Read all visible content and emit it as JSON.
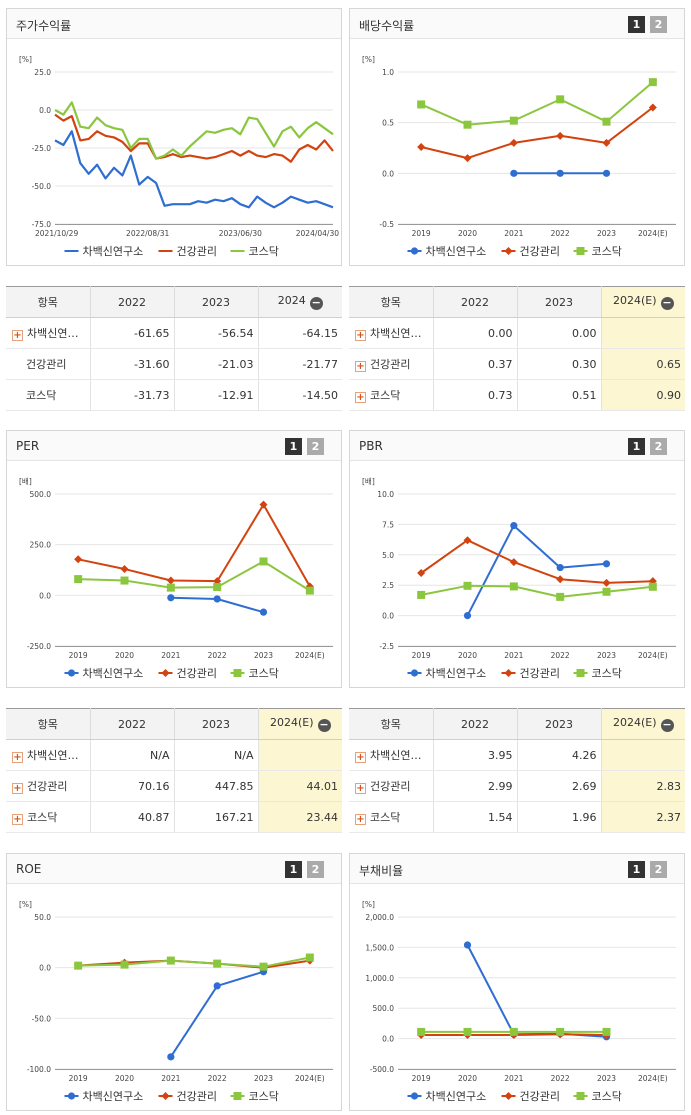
{
  "colors": {
    "blue": "#2f6ed1",
    "red": "#d2430f",
    "green": "#8bc63f"
  },
  "panels": [
    {
      "id": "stock-return",
      "title": "주가수익률",
      "unit": "[%]",
      "buttons": false,
      "chart_data": {
        "type": "line",
        "title": "주가수익률",
        "ylabel": "[%]",
        "ylim": [
          -75,
          25
        ],
        "yticks": [
          "25.0",
          "0.0",
          "-25.0",
          "-50.0",
          "-75.0"
        ],
        "x_labels": [
          "2021/10/29",
          "2022/08/31",
          "2023/06/30",
          "2024/04/30"
        ],
        "grid": true,
        "legend": "bottom",
        "series": [
          {
            "name": "차백신연구소",
            "values": [
              -20,
              -23,
              -14,
              -35,
              -42,
              -36,
              -45,
              -38,
              -43,
              -30,
              -49,
              -44,
              -48,
              -63,
              -62,
              -62,
              -62,
              -60,
              -61,
              -59,
              -60,
              -58,
              -62,
              -64,
              -57,
              -61,
              -64,
              -61,
              -57,
              -59,
              -61,
              -60,
              -62,
              -64
            ]
          },
          {
            "name": "건강관리",
            "values": [
              -3,
              -7,
              -4,
              -20,
              -19,
              -14,
              -17,
              -18,
              -21,
              -27,
              -22,
              -22,
              -32,
              -31,
              -29,
              -31,
              -30,
              -31,
              -32,
              -31,
              -29,
              -27,
              -30,
              -27,
              -30,
              -31,
              -29,
              -30,
              -34,
              -26,
              -23,
              -26,
              -20,
              -27
            ]
          },
          {
            "name": "코스닥",
            "values": [
              0,
              -3,
              5,
              -11,
              -12,
              -5,
              -10,
              -12,
              -13,
              -25,
              -19,
              -19,
              -32,
              -30,
              -26,
              -30,
              -24,
              -19,
              -14,
              -15,
              -13,
              -12,
              -16,
              -5,
              -6,
              -15,
              -24,
              -14,
              -11,
              -18,
              -12,
              -8,
              -12,
              -16
            ]
          }
        ]
      },
      "table": {
        "headers": [
          "항목",
          "2022",
          "2023",
          "2024"
        ],
        "minus_on_last": true,
        "yellow_last": false,
        "rows": [
          {
            "name": "차백신연…",
            "plus": true,
            "cells": [
              "-61.65",
              "-56.54",
              "-64.15"
            ]
          },
          {
            "name": "건강관리",
            "plus": false,
            "cells": [
              "-31.60",
              "-21.03",
              "-21.77"
            ]
          },
          {
            "name": "코스닥",
            "plus": false,
            "cells": [
              "-31.73",
              "-12.91",
              "-14.50"
            ]
          }
        ]
      }
    },
    {
      "id": "dividend-yield",
      "title": "배당수익률",
      "unit": "[%]",
      "buttons": true,
      "chart_data": {
        "type": "line",
        "title": "배당수익률",
        "ylabel": "[%]",
        "ylim": [
          -0.5,
          1.0
        ],
        "yticks": [
          "1.0",
          "0.5",
          "0.0",
          "-0.5"
        ],
        "categories": [
          "2019",
          "2020",
          "2021",
          "2022",
          "2023",
          "2024(E)"
        ],
        "grid": true,
        "legend": "bottom",
        "series": [
          {
            "name": "차백신연구소",
            "values": [
              null,
              null,
              0.0,
              0.0,
              0.0,
              null
            ]
          },
          {
            "name": "건강관리",
            "values": [
              0.26,
              0.15,
              0.3,
              0.37,
              0.3,
              0.65
            ]
          },
          {
            "name": "코스닥",
            "values": [
              0.68,
              0.48,
              0.52,
              0.73,
              0.51,
              0.9
            ]
          }
        ]
      },
      "table": {
        "headers": [
          "항목",
          "2022",
          "2023",
          "2024(E)"
        ],
        "minus_on_last": true,
        "yellow_last": true,
        "rows": [
          {
            "name": "차백신연…",
            "plus": true,
            "cells": [
              "0.00",
              "0.00",
              ""
            ]
          },
          {
            "name": "건강관리",
            "plus": true,
            "cells": [
              "0.37",
              "0.30",
              "0.65"
            ]
          },
          {
            "name": "코스닥",
            "plus": true,
            "cells": [
              "0.73",
              "0.51",
              "0.90"
            ]
          }
        ]
      }
    },
    {
      "id": "per",
      "title": "PER",
      "unit": "[배]",
      "buttons": true,
      "chart_data": {
        "type": "line",
        "title": "PER",
        "ylabel": "[배]",
        "ylim": [
          -250,
          500
        ],
        "yticks": [
          "500.0",
          "250.0",
          "0.0",
          "-250.0"
        ],
        "categories": [
          "2019",
          "2020",
          "2021",
          "2022",
          "2023",
          "2024(E)"
        ],
        "grid": true,
        "legend": "bottom",
        "series": [
          {
            "name": "차백신연구소",
            "values": [
              null,
              null,
              -12,
              -18,
              -83,
              null
            ]
          },
          {
            "name": "건강관리",
            "values": [
              178,
              130,
              73,
              70.16,
              447.85,
              44.01
            ]
          },
          {
            "name": "코스닥",
            "values": [
              80,
              73,
              38,
              40.87,
              167.21,
              23.44
            ]
          }
        ]
      },
      "table": {
        "headers": [
          "항목",
          "2022",
          "2023",
          "2024(E)"
        ],
        "minus_on_last": true,
        "yellow_last": true,
        "rows": [
          {
            "name": "차백신연…",
            "plus": true,
            "cells": [
              "N/A",
              "N/A",
              ""
            ]
          },
          {
            "name": "건강관리",
            "plus": true,
            "cells": [
              "70.16",
              "447.85",
              "44.01"
            ]
          },
          {
            "name": "코스닥",
            "plus": true,
            "cells": [
              "40.87",
              "167.21",
              "23.44"
            ]
          }
        ]
      }
    },
    {
      "id": "pbr",
      "title": "PBR",
      "unit": "[배]",
      "buttons": true,
      "chart_data": {
        "type": "line",
        "title": "PBR",
        "ylabel": "[배]",
        "ylim": [
          -2.5,
          10.0
        ],
        "yticks": [
          "10.0",
          "7.5",
          "5.0",
          "2.5",
          "0.0",
          "-2.5"
        ],
        "categories": [
          "2019",
          "2020",
          "2021",
          "2022",
          "2023",
          "2024(E)"
        ],
        "grid": true,
        "legend": "bottom",
        "series": [
          {
            "name": "차백신연구소",
            "values": [
              null,
              0.0,
              7.4,
              3.95,
              4.26,
              null
            ]
          },
          {
            "name": "건강관리",
            "values": [
              3.5,
              6.2,
              4.4,
              2.99,
              2.69,
              2.83
            ]
          },
          {
            "name": "코스닥",
            "values": [
              1.7,
              2.45,
              2.4,
              1.54,
              1.96,
              2.37
            ]
          }
        ]
      },
      "table": {
        "headers": [
          "항목",
          "2022",
          "2023",
          "2024(E)"
        ],
        "minus_on_last": true,
        "yellow_last": true,
        "rows": [
          {
            "name": "차백신연…",
            "plus": true,
            "cells": [
              "3.95",
              "4.26",
              ""
            ]
          },
          {
            "name": "건강관리",
            "plus": true,
            "cells": [
              "2.99",
              "2.69",
              "2.83"
            ]
          },
          {
            "name": "코스닥",
            "plus": true,
            "cells": [
              "1.54",
              "1.96",
              "2.37"
            ]
          }
        ]
      }
    },
    {
      "id": "roe",
      "title": "ROE",
      "unit": "[%]",
      "buttons": true,
      "chart_data": {
        "type": "line",
        "title": "ROE",
        "ylabel": "[%]",
        "ylim": [
          -100,
          50
        ],
        "yticks": [
          "50.0",
          "0.0",
          "-50.0",
          "-100.0"
        ],
        "categories": [
          "2019",
          "2020",
          "2021",
          "2022",
          "2023",
          "2024(E)"
        ],
        "grid": true,
        "legend": "bottom",
        "series": [
          {
            "name": "차백신연구소",
            "values": [
              null,
              null,
              -88,
              -18,
              -4,
              null
            ]
          },
          {
            "name": "건강관리",
            "values": [
              2,
              5,
              7,
              4,
              0,
              7
            ]
          },
          {
            "name": "코스닥",
            "values": [
              2,
              3,
              7,
              4,
              1,
              10
            ]
          }
        ]
      }
    },
    {
      "id": "debt-ratio",
      "title": "부채비율",
      "unit": "[%]",
      "buttons": true,
      "chart_data": {
        "type": "line",
        "title": "부채비율",
        "ylabel": "[%]",
        "ylim": [
          -500,
          2000
        ],
        "yticks": [
          "2,000.0",
          "1,500.0",
          "1,000.0",
          "500.0",
          "0.0",
          "-500.0"
        ],
        "categories": [
          "2019",
          "2020",
          "2021",
          "2022",
          "2023",
          "2024(E)"
        ],
        "grid": true,
        "legend": "bottom",
        "series": [
          {
            "name": "차백신연구소",
            "values": [
              null,
              1540,
              70,
              80,
              30,
              null
            ]
          },
          {
            "name": "건강관리",
            "values": [
              60,
              60,
              60,
              70,
              60,
              null
            ]
          },
          {
            "name": "코스닥",
            "values": [
              110,
              110,
              110,
              110,
              110,
              null
            ]
          }
        ]
      }
    }
  ]
}
